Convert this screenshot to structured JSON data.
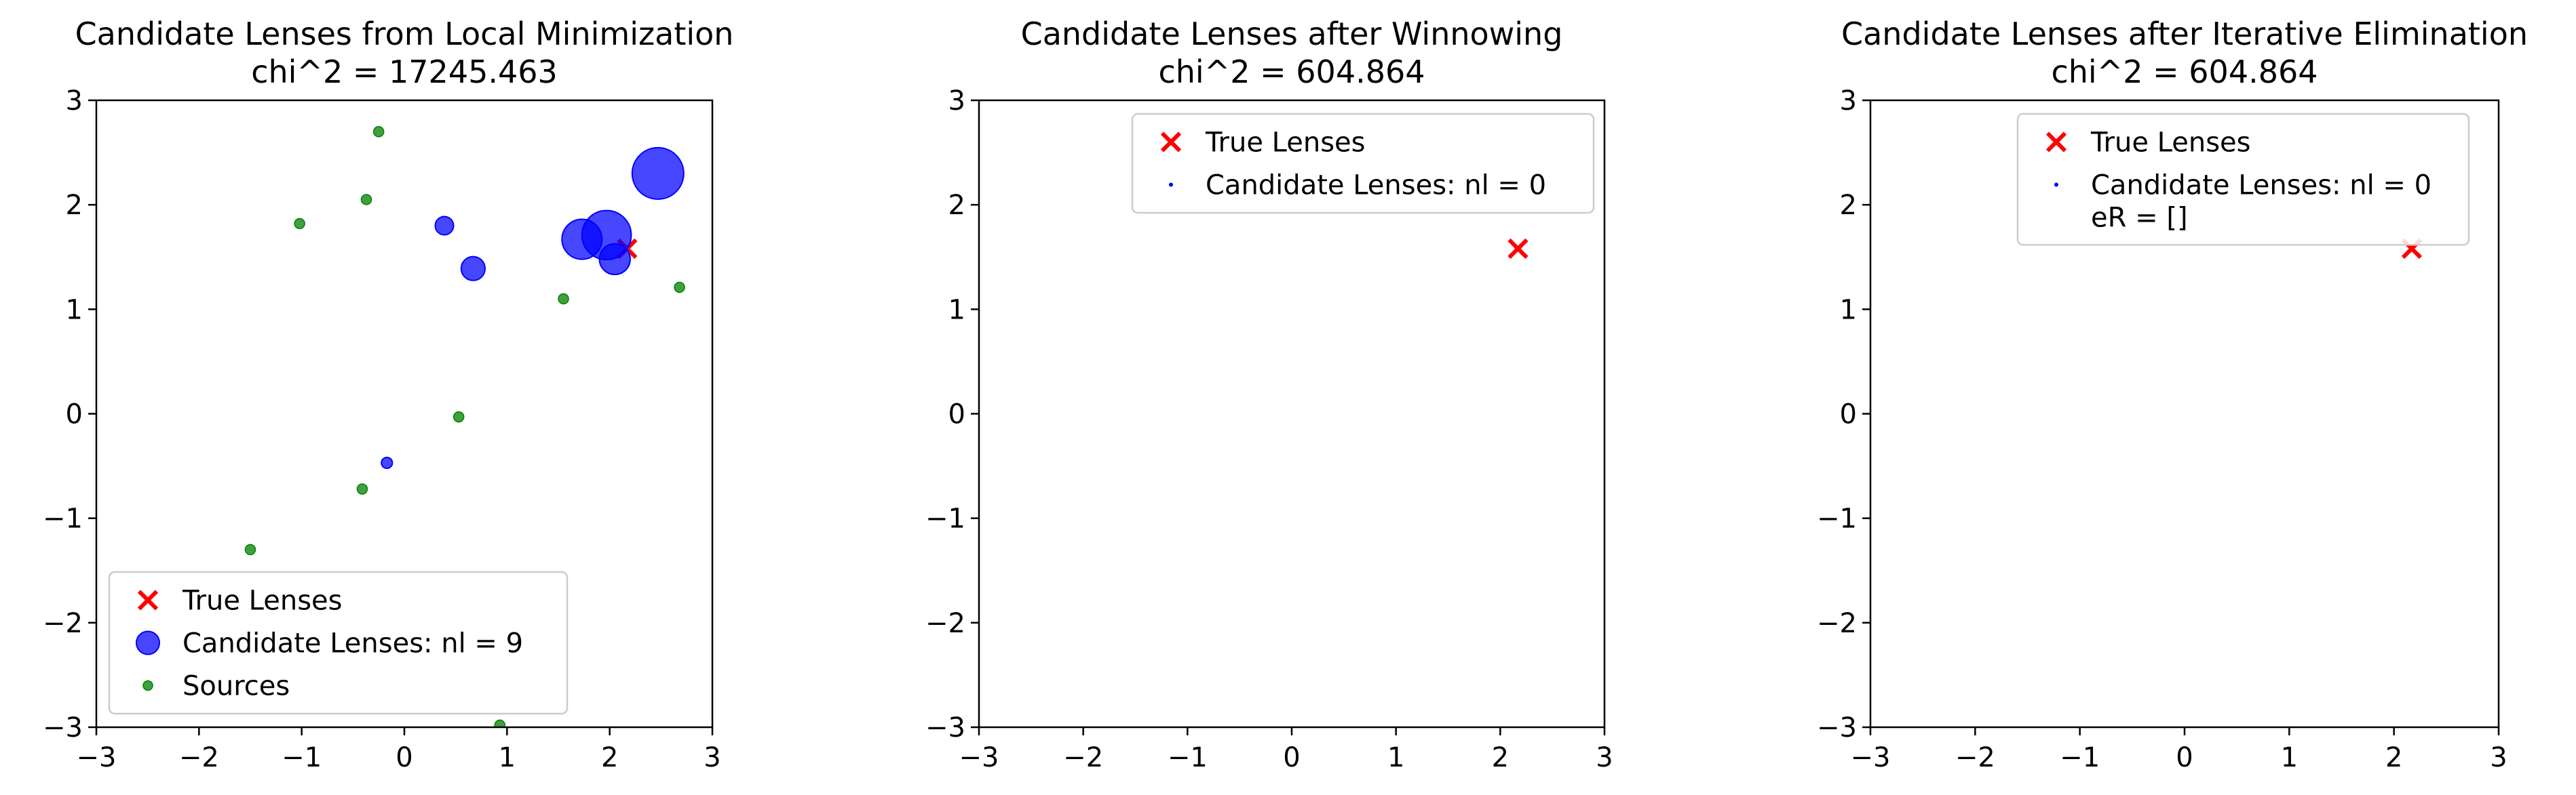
{
  "colors": {
    "true_lens": "#ff0000",
    "candidate": "#0000ff",
    "source": "#008000",
    "legend_border": "#cccccc",
    "axes": "#000000"
  },
  "chart_data": [
    {
      "type": "scatter",
      "title": "Candidate Lenses from Local Minimization",
      "subtitle": "chi^2 = 17245.463",
      "xlim": [
        -3,
        3
      ],
      "ylim": [
        -3,
        3
      ],
      "xticks": [
        "−3",
        "−2",
        "−1",
        "0",
        "1",
        "2",
        "3"
      ],
      "yticks": [
        "−3",
        "−2",
        "−1",
        "0",
        "1",
        "2",
        "3"
      ],
      "grid": false,
      "legend_position": "lower-left",
      "legend": [
        {
          "label": "True Lenses",
          "marker": "x"
        },
        {
          "label": "Candidate Lenses: nl = 9",
          "marker": "circle-large"
        },
        {
          "label": "Sources",
          "marker": "circle-small"
        }
      ],
      "series": [
        {
          "name": "True Lenses",
          "marker": "x",
          "points": [
            {
              "x": 2.17,
              "y": 1.58
            }
          ]
        },
        {
          "name": "Candidate Lenses: nl = 9",
          "marker": "circle",
          "points": [
            {
              "x": 2.47,
              "y": 2.3,
              "size": 1.0
            },
            {
              "x": 1.97,
              "y": 1.71,
              "size": 0.95
            },
            {
              "x": 1.73,
              "y": 1.67,
              "size": 0.75
            },
            {
              "x": 2.05,
              "y": 1.48,
              "size": 0.55
            },
            {
              "x": 0.67,
              "y": 1.39,
              "size": 0.4
            },
            {
              "x": 0.39,
              "y": 1.8,
              "size": 0.28
            },
            {
              "x": -0.17,
              "y": -0.47,
              "size": 0.12
            }
          ]
        },
        {
          "name": "Sources",
          "marker": "circle-small",
          "points": [
            {
              "x": -0.25,
              "y": 2.7
            },
            {
              "x": -0.37,
              "y": 2.05
            },
            {
              "x": -1.02,
              "y": 1.82
            },
            {
              "x": 1.55,
              "y": 1.1
            },
            {
              "x": 2.68,
              "y": 1.21
            },
            {
              "x": 0.53,
              "y": -0.03
            },
            {
              "x": -0.41,
              "y": -0.72
            },
            {
              "x": -1.5,
              "y": -1.3
            },
            {
              "x": 0.93,
              "y": -2.98
            }
          ]
        }
      ]
    },
    {
      "type": "scatter",
      "title": "Candidate Lenses after Winnowing",
      "subtitle": "chi^2 = 604.864",
      "xlim": [
        -3,
        3
      ],
      "ylim": [
        -3,
        3
      ],
      "xticks": [
        "−3",
        "−2",
        "−1",
        "0",
        "1",
        "2",
        "3"
      ],
      "yticks": [
        "−3",
        "−2",
        "−1",
        "0",
        "1",
        "2",
        "3"
      ],
      "grid": false,
      "legend_position": "upper-right",
      "legend": [
        {
          "label": "True Lenses",
          "marker": "x"
        },
        {
          "label": "Candidate Lenses: nl = 0",
          "marker": "dot"
        }
      ],
      "series": [
        {
          "name": "True Lenses",
          "marker": "x",
          "points": [
            {
              "x": 2.17,
              "y": 1.58
            }
          ]
        },
        {
          "name": "Candidate Lenses: nl = 0",
          "marker": "circle",
          "points": []
        }
      ]
    },
    {
      "type": "scatter",
      "title": "Candidate Lenses after Iterative Elimination",
      "subtitle": "chi^2 = 604.864",
      "xlim": [
        -3,
        3
      ],
      "ylim": [
        -3,
        3
      ],
      "xticks": [
        "−3",
        "−2",
        "−1",
        "0",
        "1",
        "2",
        "3"
      ],
      "yticks": [
        "−3",
        "−2",
        "−1",
        "0",
        "1",
        "2",
        "3"
      ],
      "grid": false,
      "legend_position": "upper-right",
      "legend": [
        {
          "label": "True Lenses",
          "marker": "x"
        },
        {
          "label": "Candidate Lenses: nl = 0",
          "label2": " eR = []",
          "marker": "dot"
        }
      ],
      "series": [
        {
          "name": "True Lenses",
          "marker": "x",
          "points": [
            {
              "x": 2.17,
              "y": 1.58
            }
          ]
        },
        {
          "name": "Candidate Lenses: nl = 0",
          "marker": "circle",
          "points": []
        }
      ]
    }
  ]
}
